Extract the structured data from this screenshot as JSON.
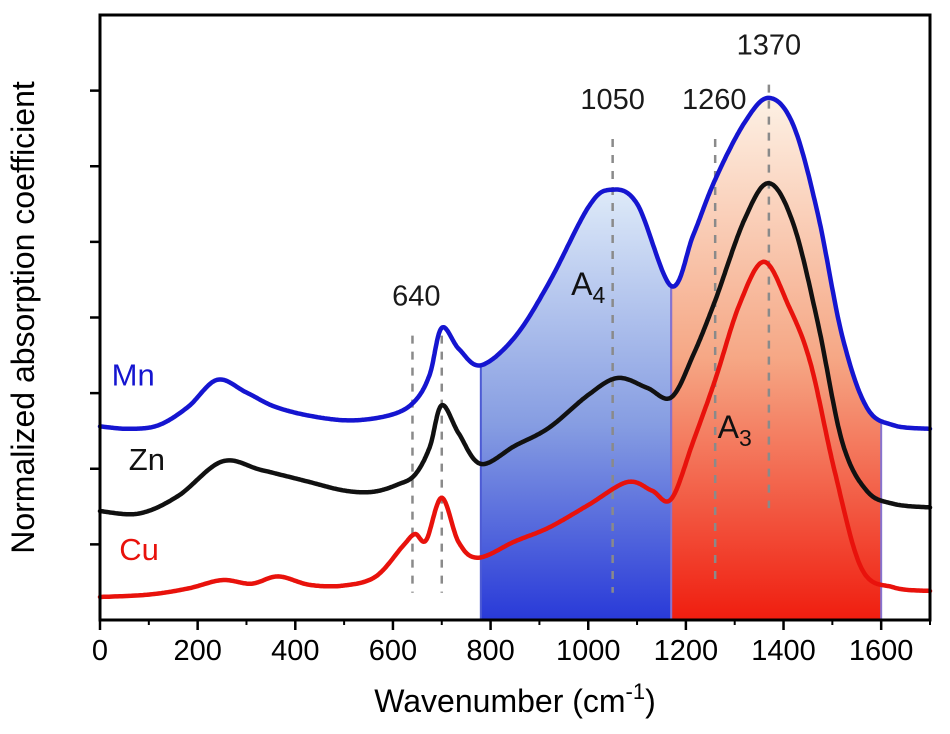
{
  "chart_data": {
    "type": "line",
    "title": "",
    "xlabel": {
      "pre": "Wavenumber (cm",
      "sup": "-1",
      "post": ")"
    },
    "ylabel": "Normalized absorption coefficient",
    "xlim": [
      0,
      1700
    ],
    "ylim": [
      0,
      1
    ],
    "grid": false,
    "x_ticks": [
      0,
      200,
      400,
      600,
      800,
      1000,
      1200,
      1400,
      1600
    ],
    "x_tick_labels": [
      "0",
      "200",
      "400",
      "600",
      "800",
      "1000",
      "1200",
      "1400",
      "1600"
    ],
    "x_minor_step": 100,
    "y_tick_positions": [
      0.125,
      0.25,
      0.375,
      0.5,
      0.625,
      0.75,
      0.875
    ],
    "axis_color": "#000000",
    "series": [
      {
        "name": "Cu",
        "color": "#e8120c",
        "label_pos": {
          "x": 80,
          "y": 0.099
        },
        "points": [
          [
            0,
            0.038
          ],
          [
            100,
            0.042
          ],
          [
            180,
            0.052
          ],
          [
            250,
            0.066
          ],
          [
            310,
            0.06
          ],
          [
            365,
            0.072
          ],
          [
            430,
            0.058
          ],
          [
            500,
            0.057
          ],
          [
            565,
            0.072
          ],
          [
            620,
            0.122
          ],
          [
            645,
            0.142
          ],
          [
            668,
            0.132
          ],
          [
            700,
            0.202
          ],
          [
            735,
            0.128
          ],
          [
            775,
            0.103
          ],
          [
            850,
            0.13
          ],
          [
            920,
            0.153
          ],
          [
            1000,
            0.19
          ],
          [
            1080,
            0.228
          ],
          [
            1130,
            0.214
          ],
          [
            1170,
            0.2
          ],
          [
            1215,
            0.295
          ],
          [
            1260,
            0.397
          ],
          [
            1310,
            0.522
          ],
          [
            1360,
            0.592
          ],
          [
            1410,
            0.52
          ],
          [
            1455,
            0.425
          ],
          [
            1505,
            0.245
          ],
          [
            1560,
            0.085
          ],
          [
            1625,
            0.054
          ],
          [
            1700,
            0.048
          ]
        ]
      },
      {
        "name": "Zn",
        "color": "#111111",
        "label_pos": {
          "x": 96,
          "y": 0.248
        },
        "points": [
          [
            0,
            0.18
          ],
          [
            80,
            0.176
          ],
          [
            160,
            0.205
          ],
          [
            250,
            0.262
          ],
          [
            330,
            0.248
          ],
          [
            420,
            0.23
          ],
          [
            500,
            0.214
          ],
          [
            560,
            0.212
          ],
          [
            610,
            0.224
          ],
          [
            645,
            0.24
          ],
          [
            675,
            0.285
          ],
          [
            700,
            0.355
          ],
          [
            735,
            0.308
          ],
          [
            780,
            0.258
          ],
          [
            850,
            0.288
          ],
          [
            920,
            0.318
          ],
          [
            1000,
            0.372
          ],
          [
            1060,
            0.4
          ],
          [
            1120,
            0.384
          ],
          [
            1170,
            0.368
          ],
          [
            1215,
            0.438
          ],
          [
            1260,
            0.528
          ],
          [
            1320,
            0.662
          ],
          [
            1370,
            0.722
          ],
          [
            1420,
            0.655
          ],
          [
            1470,
            0.492
          ],
          [
            1520,
            0.295
          ],
          [
            1570,
            0.214
          ],
          [
            1625,
            0.192
          ],
          [
            1700,
            0.186
          ]
        ]
      },
      {
        "name": "Mn",
        "color": "#1515d0",
        "label_pos": {
          "x": 68,
          "y": 0.388
        },
        "points": [
          [
            0,
            0.32
          ],
          [
            60,
            0.316
          ],
          [
            120,
            0.322
          ],
          [
            180,
            0.352
          ],
          [
            240,
            0.397
          ],
          [
            300,
            0.376
          ],
          [
            360,
            0.352
          ],
          [
            440,
            0.336
          ],
          [
            520,
            0.33
          ],
          [
            600,
            0.34
          ],
          [
            645,
            0.362
          ],
          [
            675,
            0.405
          ],
          [
            700,
            0.483
          ],
          [
            735,
            0.448
          ],
          [
            780,
            0.421
          ],
          [
            850,
            0.468
          ],
          [
            920,
            0.558
          ],
          [
            1000,
            0.682
          ],
          [
            1045,
            0.711
          ],
          [
            1100,
            0.688
          ],
          [
            1170,
            0.552
          ],
          [
            1215,
            0.636
          ],
          [
            1260,
            0.728
          ],
          [
            1320,
            0.822
          ],
          [
            1370,
            0.863
          ],
          [
            1420,
            0.818
          ],
          [
            1470,
            0.672
          ],
          [
            1520,
            0.47
          ],
          [
            1570,
            0.352
          ],
          [
            1625,
            0.322
          ],
          [
            1700,
            0.316
          ]
        ]
      }
    ],
    "top_boundary_series": "Mn",
    "regions": [
      {
        "name": "A4",
        "x_from": 780,
        "x_to": 1170,
        "edge_color": "#4d5bd4",
        "gradient_stops": [
          {
            "offset": 0,
            "color": "#dce9f8"
          },
          {
            "offset": 0.55,
            "color": "#7f97e0"
          },
          {
            "offset": 1,
            "color": "#1d2fd6"
          }
        ],
        "label": {
          "text": "A",
          "sub": "4",
          "x": 1000,
          "y": 0.537,
          "color": "#111111"
        }
      },
      {
        "name": "A3",
        "x_from": 1170,
        "x_to": 1600,
        "edge_color": "#8673d0",
        "gradient_stops": [
          {
            "offset": 0,
            "color": "#fdf0e3"
          },
          {
            "offset": 0.5,
            "color": "#f5a27e"
          },
          {
            "offset": 1,
            "color": "#ef1102"
          }
        ],
        "label": {
          "text": "A",
          "sub": "3",
          "x": 1300,
          "y": 0.301,
          "color": "#111111"
        }
      }
    ],
    "dashed_lines": [
      {
        "x": 640,
        "y_top": 0.47,
        "y_bottom": 0.045
      },
      {
        "x": 700,
        "y_top": 0.47,
        "y_bottom": 0.045
      },
      {
        "x": 1050,
        "y_top": 0.795,
        "y_bottom": 0.045
      },
      {
        "x": 1260,
        "y_top": 0.795,
        "y_bottom": 0.065
      },
      {
        "x": 1370,
        "y_top": 0.885,
        "y_bottom": 0.185
      }
    ],
    "dashed_line_color": "#8a8a8a",
    "peak_labels": [
      {
        "text": "640",
        "x": 648,
        "y": 0.52
      },
      {
        "text": "1050",
        "x": 1050,
        "y": 0.845
      },
      {
        "text": "1260",
        "x": 1258,
        "y": 0.845
      },
      {
        "text": "1370",
        "x": 1370,
        "y": 0.935
      }
    ]
  }
}
